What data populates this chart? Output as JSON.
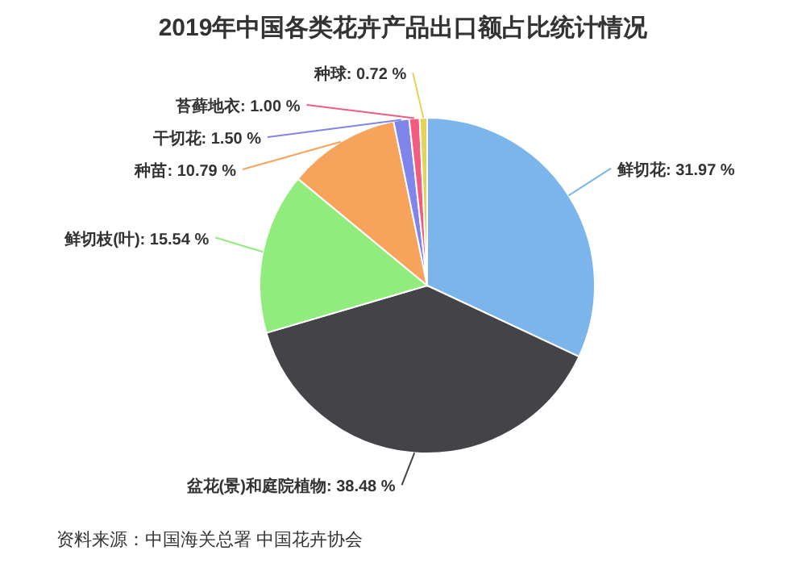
{
  "chart_data": {
    "type": "pie",
    "title": "2019年中国各类花卉产品出口额占比统计情况",
    "categories": [
      "鲜切花",
      "盆花(景)和庭院植物",
      "鲜切枝(叶)",
      "种苗",
      "干切花",
      "苔藓地衣",
      "种球"
    ],
    "values": [
      31.97,
      38.48,
      15.54,
      10.79,
      1.5,
      1.0,
      0.72
    ],
    "value_labels": [
      "31.97 %",
      "38.48 %",
      "15.54 %",
      "10.79 %",
      "1.50 %",
      "1.00 %",
      "0.72 %"
    ],
    "colors": [
      "#7cb5ec",
      "#434348",
      "#90ed7d",
      "#f7a35c",
      "#8085e9",
      "#f15c80",
      "#e4d354"
    ],
    "annotations": [
      "资料来源：中国海关总署 中国花卉协会"
    ]
  }
}
